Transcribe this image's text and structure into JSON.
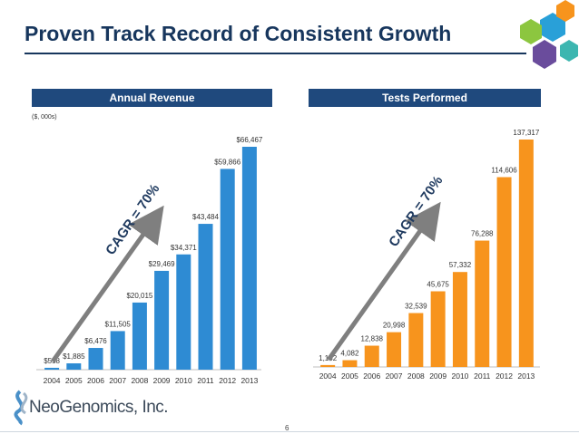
{
  "slide": {
    "title": "Proven Track Record of Consistent Growth",
    "page_number": "6",
    "company": "NeoGenomics, Inc.",
    "colors": {
      "title": "#17365d",
      "band": "#1f497d",
      "revenue_bar": "#2e8bd3",
      "tests_bar": "#f7941d",
      "arrow": "#7f7f7f"
    }
  },
  "chart_data": [
    {
      "type": "bar",
      "title": "Annual Revenue",
      "units_note": "($, 000s)",
      "categories": [
        "2004",
        "2005",
        "2006",
        "2007",
        "2008",
        "2009",
        "2010",
        "2011",
        "2012",
        "2013"
      ],
      "values": [
        558,
        1885,
        6476,
        11505,
        20015,
        29469,
        34371,
        43484,
        59866,
        66467
      ],
      "labels": [
        "$558",
        "$1,885",
        "$6,476",
        "$11,505",
        "$20,015",
        "$29,469",
        "$34,371",
        "$43,484",
        "$59,866",
        "$66,467"
      ],
      "ylim": [
        0,
        70000
      ],
      "annotation": "CAGR = 70%",
      "color": "#2e8bd3"
    },
    {
      "type": "bar",
      "title": "Tests Performed",
      "categories": [
        "2004",
        "2005",
        "2006",
        "2007",
        "2008",
        "2009",
        "2010",
        "2011",
        "2012",
        "2013"
      ],
      "values": [
        1152,
        4082,
        12838,
        20998,
        32539,
        45675,
        57332,
        76288,
        114606,
        137317
      ],
      "labels": [
        "1,152",
        "4,082",
        "12,838",
        "20,998",
        "32,539",
        "45,675",
        "57,332",
        "76,288",
        "114,606",
        "137,317"
      ],
      "ylim": [
        0,
        140000
      ],
      "annotation": "CAGR = 70%",
      "color": "#f7941d"
    }
  ]
}
